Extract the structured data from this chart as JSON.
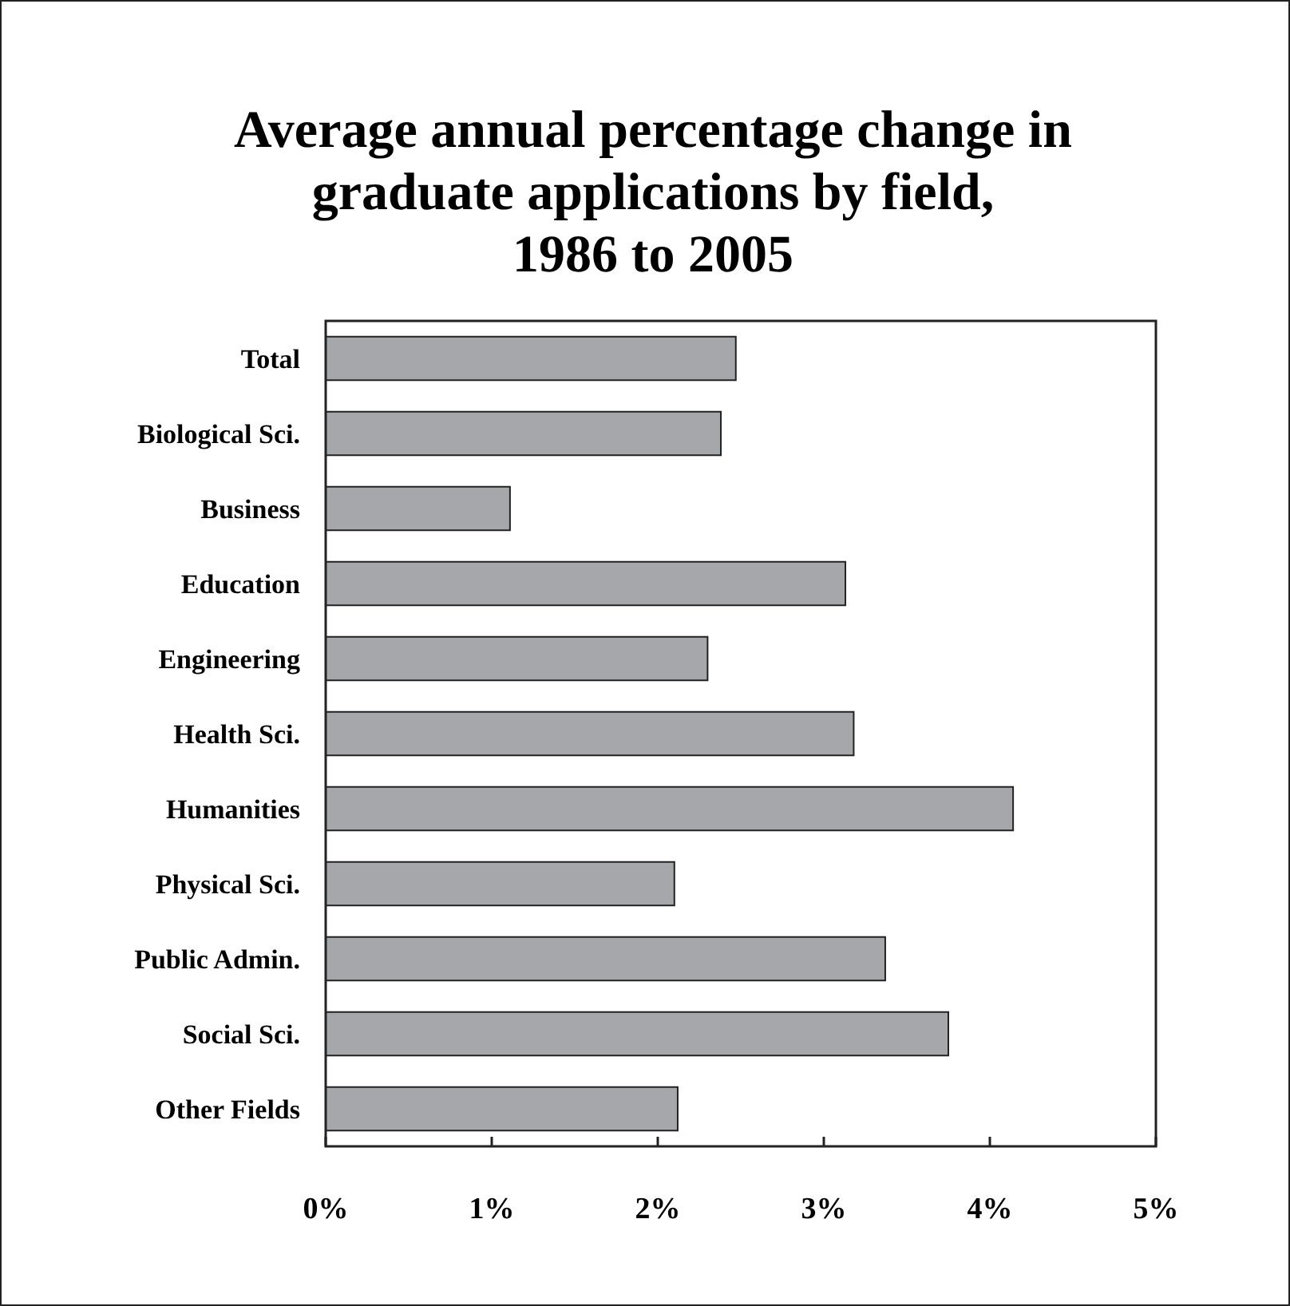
{
  "chart_data": {
    "type": "bar",
    "orientation": "horizontal",
    "title": "Average annual percentage change in graduate applications by field, 1986 to 2005",
    "categories": [
      "Total",
      "Biological Sci.",
      "Business",
      "Education",
      "Engineering",
      "Health Sci.",
      "Humanities",
      "Physical Sci.",
      "Public Admin.",
      "Social Sci.",
      "Other Fields"
    ],
    "values": [
      2.47,
      2.38,
      1.11,
      3.13,
      2.3,
      3.18,
      4.14,
      2.1,
      3.37,
      3.75,
      2.12
    ],
    "color": "#a6a7aa",
    "xlim": [
      0,
      5
    ],
    "xticks": [
      {
        "value": 0,
        "label": "0%"
      },
      {
        "value": 1,
        "label": "1%"
      },
      {
        "value": 2,
        "label": "2%"
      },
      {
        "value": 3,
        "label": "3%"
      },
      {
        "value": 4,
        "label": "4%"
      },
      {
        "value": 5,
        "label": "5%"
      }
    ],
    "grid": false
  }
}
